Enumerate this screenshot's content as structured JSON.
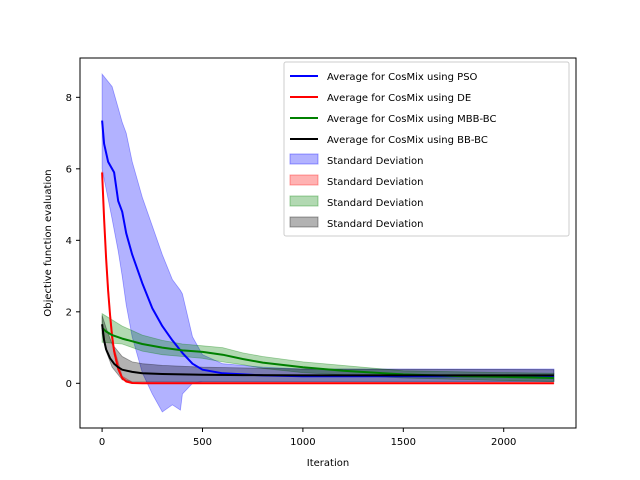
{
  "chart_data": {
    "type": "line",
    "xlabel": "Iteration",
    "ylabel": "Objective function evaluation",
    "xlim": [
      -110,
      2360
    ],
    "ylim": [
      -1.25,
      9.1
    ],
    "xticks": [
      0,
      500,
      1000,
      1500,
      2000
    ],
    "yticks": [
      0,
      2,
      4,
      6,
      8
    ],
    "grid": false,
    "legend_position": "upper-right",
    "series": [
      {
        "name": "Average for CosMix using PSO",
        "color": "#0000ff",
        "x": [
          0,
          10,
          30,
          60,
          80,
          100,
          120,
          150,
          200,
          250,
          300,
          350,
          400,
          450,
          500,
          600,
          800,
          1000,
          1500,
          2000,
          2250
        ],
        "values": [
          7.35,
          6.7,
          6.2,
          5.9,
          5.1,
          4.8,
          4.2,
          3.6,
          2.8,
          2.1,
          1.6,
          1.2,
          0.85,
          0.55,
          0.38,
          0.28,
          0.22,
          0.2,
          0.2,
          0.2,
          0.2
        ]
      },
      {
        "name": "Average for CosMix using DE",
        "color": "#ff0000",
        "x": [
          0,
          10,
          20,
          30,
          40,
          50,
          60,
          80,
          100,
          120,
          150,
          200,
          300,
          500,
          1000,
          2250
        ],
        "values": [
          5.9,
          4.6,
          3.5,
          2.6,
          1.9,
          1.3,
          0.9,
          0.4,
          0.15,
          0.05,
          0.01,
          0.0,
          0.0,
          0.0,
          0.0,
          0.0
        ]
      },
      {
        "name": "Average for CosMix using MBB-BC",
        "color": "#008000",
        "x": [
          0,
          20,
          50,
          100,
          200,
          300,
          400,
          500,
          600,
          700,
          800,
          1000,
          1200,
          1500,
          1800,
          2000,
          2250
        ],
        "values": [
          1.55,
          1.45,
          1.35,
          1.25,
          1.1,
          1.0,
          0.92,
          0.88,
          0.8,
          0.68,
          0.58,
          0.45,
          0.35,
          0.25,
          0.2,
          0.18,
          0.15
        ]
      },
      {
        "name": "Average for CosMix using BB-BC",
        "color": "#000000",
        "x": [
          0,
          10,
          20,
          40,
          60,
          80,
          100,
          150,
          200,
          300,
          400,
          500,
          700,
          1000,
          2250
        ],
        "values": [
          1.65,
          1.2,
          0.95,
          0.7,
          0.55,
          0.45,
          0.38,
          0.32,
          0.28,
          0.26,
          0.25,
          0.24,
          0.23,
          0.22,
          0.22
        ]
      }
    ],
    "bands": [
      {
        "name": "Standard Deviation",
        "color": "#0000ff",
        "x": [
          0,
          50,
          80,
          100,
          120,
          150,
          200,
          250,
          300,
          350,
          390,
          400,
          450,
          500,
          600,
          800,
          1000,
          1500,
          2250
        ],
        "upper": [
          8.65,
          8.3,
          7.7,
          7.3,
          7.0,
          6.2,
          5.2,
          4.4,
          3.6,
          2.9,
          2.6,
          2.5,
          1.3,
          0.8,
          0.55,
          0.45,
          0.4,
          0.4,
          0.4
        ],
        "lower": [
          6.0,
          4.6,
          3.7,
          3.0,
          2.2,
          1.3,
          0.3,
          -0.3,
          -0.8,
          -0.6,
          -0.75,
          -0.3,
          0.0,
          0.05,
          0.05,
          0.05,
          0.05,
          0.05,
          0.05
        ]
      },
      {
        "name": "Standard Deviation",
        "color": "#ff0000",
        "x": [
          0,
          20,
          40,
          60,
          100,
          150,
          2250
        ],
        "upper": [
          5.95,
          3.6,
          2.0,
          1.0,
          0.2,
          0.03,
          0.02
        ],
        "lower": [
          5.85,
          3.4,
          1.8,
          0.8,
          0.1,
          0.0,
          -0.01
        ]
      },
      {
        "name": "Standard Deviation",
        "color": "#008000",
        "x": [
          0,
          100,
          200,
          300,
          400,
          500,
          600,
          700,
          800,
          1000,
          1500,
          2000,
          2250
        ],
        "upper": [
          1.95,
          1.6,
          1.35,
          1.2,
          1.1,
          1.05,
          1.0,
          0.85,
          0.75,
          0.6,
          0.35,
          0.3,
          0.28
        ],
        "lower": [
          1.15,
          1.1,
          0.9,
          0.8,
          0.75,
          0.7,
          0.6,
          0.52,
          0.42,
          0.3,
          0.15,
          0.08,
          0.05
        ]
      },
      {
        "name": "Standard Deviation",
        "color": "#000000",
        "x": [
          0,
          20,
          50,
          100,
          150,
          200,
          300,
          500,
          1000,
          2250
        ],
        "upper": [
          1.9,
          1.55,
          1.1,
          0.75,
          0.6,
          0.55,
          0.5,
          0.45,
          0.4,
          0.38
        ],
        "lower": [
          1.4,
          0.9,
          0.45,
          0.1,
          0.05,
          0.05,
          0.05,
          0.05,
          0.05,
          0.05
        ]
      }
    ]
  }
}
